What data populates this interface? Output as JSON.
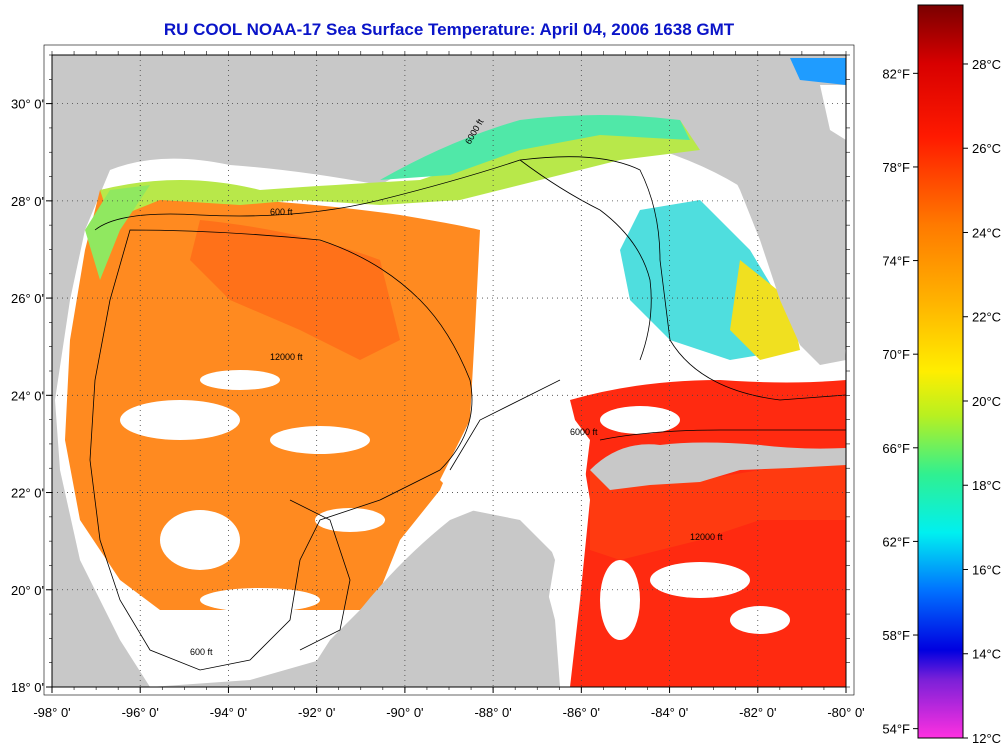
{
  "title": "RU COOL  NOAA-17  Sea Surface Temperature:  April 04, 2006 1638 GMT",
  "map": {
    "lon_range": [
      -98,
      -80
    ],
    "lat_range": [
      18,
      31
    ],
    "lon_ticks": [
      {
        "value": -98,
        "label": "-98° 0'"
      },
      {
        "value": -96,
        "label": "-96° 0'"
      },
      {
        "value": -94,
        "label": "-94° 0'"
      },
      {
        "value": -92,
        "label": "-92° 0'"
      },
      {
        "value": -90,
        "label": "-90° 0'"
      },
      {
        "value": -88,
        "label": "-88° 0'"
      },
      {
        "value": -86,
        "label": "-86° 0'"
      },
      {
        "value": -84,
        "label": "-84° 0'"
      },
      {
        "value": -82,
        "label": "-82° 0'"
      },
      {
        "value": -80,
        "label": "-80° 0'"
      }
    ],
    "lat_ticks": [
      {
        "value": 30,
        "label": "30° 0'"
      },
      {
        "value": 28,
        "label": "28° 0'"
      },
      {
        "value": 26,
        "label": "26° 0'"
      },
      {
        "value": 24,
        "label": "24° 0'"
      },
      {
        "value": 22,
        "label": "22° 0'"
      },
      {
        "value": 20,
        "label": "20° 0'"
      },
      {
        "value": 18,
        "label": "18° 0'"
      }
    ],
    "grid": true,
    "contour_labels": [
      "600 ft",
      "6000 ft",
      "12000 ft"
    ],
    "colors": {
      "land": "#c8c8c8",
      "cloud": "#ffffff",
      "coast_water": "#4df0b0",
      "warm": "#ff7a1a",
      "hot": "#ff2a10"
    }
  },
  "colorbar": {
    "celsius_ticks": [
      {
        "value": 28,
        "label": "28°C"
      },
      {
        "value": 26,
        "label": "26°C"
      },
      {
        "value": 24,
        "label": "24°C"
      },
      {
        "value": 22,
        "label": "22°C"
      },
      {
        "value": 20,
        "label": "20°C"
      },
      {
        "value": 18,
        "label": "18°C"
      },
      {
        "value": 16,
        "label": "16°C"
      },
      {
        "value": 14,
        "label": "14°C"
      },
      {
        "value": 12,
        "label": "12°C"
      }
    ],
    "fahrenheit_ticks": [
      {
        "value": 82,
        "label": "82°F"
      },
      {
        "value": 78,
        "label": "78°F"
      },
      {
        "value": 74,
        "label": "74°F"
      },
      {
        "value": 70,
        "label": "70°F"
      },
      {
        "value": 66,
        "label": "66°F"
      },
      {
        "value": 62,
        "label": "62°F"
      },
      {
        "value": 58,
        "label": "58°F"
      },
      {
        "value": 54,
        "label": "54°F"
      }
    ],
    "range_c": [
      12,
      29.4
    ]
  }
}
